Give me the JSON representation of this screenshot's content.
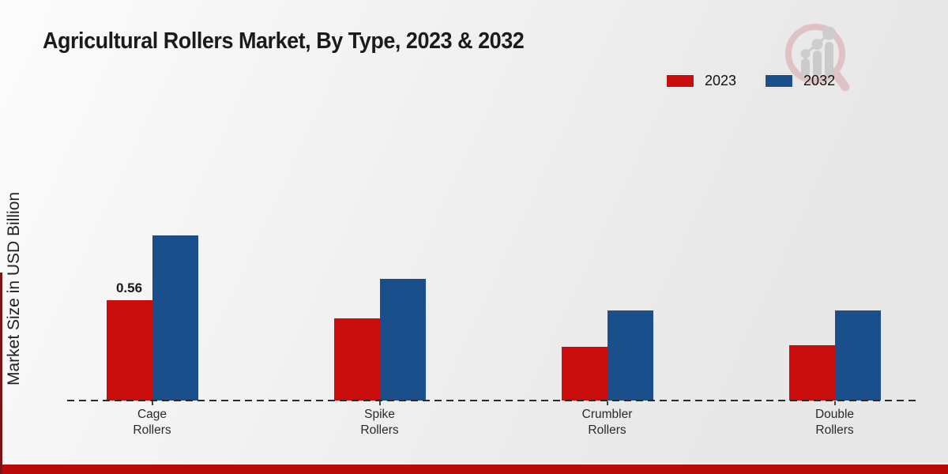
{
  "chart_data": {
    "type": "bar",
    "title": "Agricultural Rollers Market, By Type, 2023 & 2032",
    "ylabel": "Market Size in USD Billion",
    "xlabel": "",
    "categories": [
      "Cage Rollers",
      "Spike Rollers",
      "Crumbler Rollers",
      "Double Rollers"
    ],
    "series": [
      {
        "name": "2023",
        "color": "#c90d0d",
        "values": [
          0.56,
          0.46,
          0.3,
          0.31
        ]
      },
      {
        "name": "2032",
        "color": "#1a4f8c",
        "values": [
          0.92,
          0.68,
          0.5,
          0.5
        ]
      }
    ],
    "annotations": [
      {
        "category": "Cage Rollers",
        "series": "2023",
        "text": "0.56"
      }
    ],
    "ylim": [
      0,
      1.0
    ],
    "grid": false,
    "legend_position": "top-right",
    "baseline_style": "dashed"
  },
  "accents": {
    "bottom_bar_color": "#b90909",
    "left_strip_color": "#7d1315"
  },
  "watermark": {
    "name": "market-research-magnifier-logo",
    "ring_color": "#debcbe",
    "bars_color": "#c6c6c6"
  }
}
